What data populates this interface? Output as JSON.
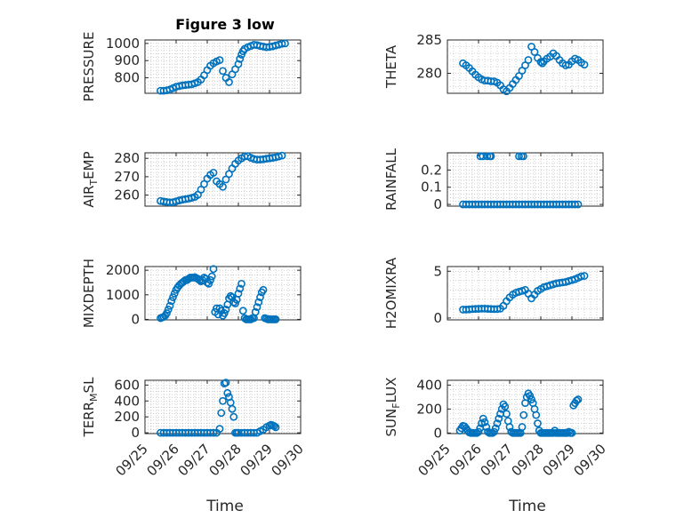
{
  "figure": {
    "title": "Figure 3 low",
    "xlabel": "Time",
    "marker_color": "#0072BD"
  },
  "chart_data": [
    {
      "type": "scatter",
      "title": "Figure 3 low",
      "ylabel": "PRESSURE",
      "xlim": [
        0,
        5
      ],
      "ylim": [
        710,
        1020
      ],
      "yticks": [
        800,
        900,
        1000
      ],
      "xticks": [
        0,
        1,
        2,
        3,
        4,
        5
      ],
      "xticklabels": [],
      "grid": true,
      "series": [
        {
          "x": [
            0.5,
            0.6,
            0.7,
            0.8,
            0.9,
            1.0,
            1.1,
            1.2,
            1.3,
            1.4,
            1.5,
            1.6,
            1.7,
            1.8,
            1.9,
            2.0,
            2.1,
            2.2,
            2.3,
            2.4,
            2.5,
            2.6,
            2.7,
            2.8,
            2.9,
            3.0,
            3.05,
            3.1,
            3.15,
            3.2,
            3.3,
            3.4,
            3.5,
            3.6,
            3.7,
            3.8,
            3.9,
            4.0,
            4.1,
            4.2,
            4.3,
            4.4,
            4.5
          ],
          "y": [
            725,
            725,
            727,
            732,
            740,
            748,
            752,
            756,
            758,
            760,
            762,
            768,
            775,
            790,
            815,
            845,
            870,
            885,
            895,
            903,
            840,
            800,
            775,
            820,
            850,
            880,
            910,
            935,
            955,
            968,
            978,
            985,
            992,
            990,
            985,
            982,
            978,
            980,
            983,
            988,
            993,
            998,
            1000
          ]
        }
      ]
    },
    {
      "type": "scatter",
      "ylabel": "THETA",
      "xlim": [
        0,
        5
      ],
      "ylim": [
        277,
        285
      ],
      "yticks": [
        280,
        285
      ],
      "xticks": [
        0,
        1,
        2,
        3,
        4,
        5
      ],
      "xticklabels": [],
      "grid": true,
      "series": [
        {
          "x": [
            0.5,
            0.6,
            0.7,
            0.8,
            0.9,
            1.0,
            1.1,
            1.2,
            1.3,
            1.4,
            1.5,
            1.6,
            1.7,
            1.8,
            1.9,
            2.0,
            2.1,
            2.2,
            2.3,
            2.4,
            2.5,
            2.6,
            2.7,
            2.8,
            2.9,
            3.0,
            3.05,
            3.1,
            3.2,
            3.3,
            3.4,
            3.5,
            3.6,
            3.7,
            3.8,
            3.9,
            4.0,
            4.1,
            4.2,
            4.3,
            4.4
          ],
          "y": [
            281.5,
            281.2,
            280.8,
            280.3,
            279.8,
            279.4,
            279.1,
            278.9,
            278.9,
            278.8,
            278.8,
            278.6,
            278.2,
            277.6,
            277.3,
            277.8,
            278.4,
            279.0,
            279.6,
            280.4,
            281.2,
            282.0,
            284.0,
            283.2,
            282.3,
            281.7,
            281.5,
            281.8,
            282.2,
            282.5,
            283.0,
            282.6,
            282.0,
            281.5,
            281.2,
            281.3,
            281.8,
            282.2,
            282.0,
            281.6,
            281.3
          ]
        }
      ]
    },
    {
      "type": "scatter",
      "ylabel": "AIR_TEMP",
      "xlim": [
        0,
        5
      ],
      "ylim": [
        254,
        283
      ],
      "yticks": [
        260,
        270,
        280
      ],
      "xticks": [
        0,
        1,
        2,
        3,
        4,
        5
      ],
      "xticklabels": [],
      "grid": true,
      "series": [
        {
          "x": [
            0.5,
            0.6,
            0.7,
            0.8,
            0.9,
            1.0,
            1.1,
            1.2,
            1.3,
            1.4,
            1.5,
            1.6,
            1.7,
            1.8,
            1.9,
            2.0,
            2.1,
            2.2,
            2.3,
            2.4,
            2.5,
            2.6,
            2.7,
            2.8,
            2.9,
            3.0,
            3.1,
            3.2,
            3.3,
            3.4,
            3.5,
            3.6,
            3.7,
            3.8,
            3.9,
            4.0,
            4.1,
            4.2,
            4.3,
            4.4
          ],
          "y": [
            256.8,
            256.5,
            256.2,
            256.0,
            256.1,
            256.6,
            257.1,
            257.5,
            257.8,
            258.1,
            258.5,
            259.0,
            260.2,
            263.0,
            266.0,
            269.0,
            271.0,
            272.2,
            267.5,
            266.0,
            264.5,
            268.5,
            271.5,
            274.5,
            277.0,
            278.8,
            280.0,
            281.0,
            281.2,
            280.3,
            279.6,
            279.3,
            279.3,
            279.5,
            279.8,
            280.0,
            280.3,
            280.6,
            281.0,
            281.5
          ]
        }
      ]
    },
    {
      "type": "scatter",
      "ylabel": "RAINFALL",
      "xlim": [
        0,
        5
      ],
      "ylim": [
        -0.01,
        0.3
      ],
      "yticks": [
        0,
        0.1,
        0.2
      ],
      "xticks": [
        0,
        1,
        2,
        3,
        4,
        5
      ],
      "xticklabels": [],
      "grid": true,
      "series": [
        {
          "x": [
            0.5,
            0.6,
            0.7,
            0.8,
            0.9,
            1.0,
            1.1,
            1.2,
            1.3,
            1.4,
            1.5,
            1.6,
            1.7,
            1.8,
            1.9,
            2.0,
            2.1,
            2.2,
            2.3,
            2.4,
            2.5,
            2.6,
            2.7,
            2.8,
            2.9,
            3.0,
            3.1,
            3.2,
            3.3,
            3.4,
            3.5,
            3.6,
            3.7,
            3.8,
            3.9,
            4.0,
            4.1,
            4.2,
            1.06,
            1.14,
            1.28,
            1.36,
            1.4,
            2.3,
            2.38,
            2.44
          ],
          "y": [
            0,
            0,
            0,
            0,
            0,
            0,
            0,
            0,
            0,
            0,
            0,
            0,
            0,
            0,
            0,
            0,
            0,
            0,
            0,
            0,
            0,
            0,
            0,
            0,
            0,
            0,
            0,
            0,
            0,
            0,
            0,
            0,
            0,
            0,
            0,
            0,
            0,
            0,
            0.28,
            0.28,
            0.28,
            0.28,
            0.28,
            0.28,
            0.28,
            0.28
          ]
        }
      ]
    },
    {
      "type": "scatter",
      "ylabel": "MIXDEPTH",
      "xlim": [
        0,
        5
      ],
      "ylim": [
        -20,
        2150
      ],
      "yticks": [
        0,
        1000,
        2000
      ],
      "xticks": [
        0,
        1,
        2,
        3,
        4,
        5
      ],
      "xticklabels": [],
      "grid": true,
      "series": [
        {
          "x": [
            0.5,
            0.55,
            0.6,
            0.65,
            0.7,
            0.75,
            0.8,
            0.85,
            0.9,
            0.95,
            1.0,
            1.05,
            1.1,
            1.15,
            1.2,
            1.25,
            1.3,
            1.35,
            1.4,
            1.45,
            1.5,
            1.55,
            1.6,
            1.65,
            1.7,
            1.75,
            1.8,
            1.85,
            1.9,
            1.95,
            2.0,
            2.05,
            2.1,
            2.15,
            2.2,
            2.25,
            2.3,
            2.35,
            2.4,
            2.45,
            2.5,
            2.55,
            2.6,
            2.65,
            2.7,
            2.75,
            2.8,
            2.85,
            2.9,
            2.95,
            3.0,
            3.05,
            3.1,
            3.15,
            3.2,
            3.25,
            3.3,
            3.35,
            3.4,
            3.45,
            3.5,
            3.55,
            3.6,
            3.65,
            3.7,
            3.75,
            3.8,
            3.85,
            3.9,
            3.95,
            4.0,
            4.05,
            4.1,
            4.15,
            4.2
          ],
          "y": [
            50,
            80,
            100,
            150,
            250,
            400,
            550,
            750,
            900,
            1050,
            1200,
            1300,
            1380,
            1450,
            1500,
            1550,
            1600,
            1600,
            1650,
            1700,
            1700,
            1700,
            1720,
            1680,
            1650,
            1600,
            1550,
            1600,
            1700,
            1650,
            1500,
            1450,
            1600,
            1750,
            2050,
            300,
            450,
            200,
            450,
            350,
            150,
            250,
            400,
            600,
            850,
            950,
            900,
            700,
            650,
            800,
            1050,
            1250,
            1450,
            350,
            50,
            0,
            0,
            0,
            0,
            50,
            50,
            300,
            500,
            700,
            900,
            1100,
            1200,
            50,
            30,
            0,
            0,
            0,
            0,
            0,
            0
          ]
        }
      ]
    },
    {
      "type": "scatter",
      "ylabel": "H2OMIXRA",
      "xlim": [
        0,
        5
      ],
      "ylim": [
        -0.2,
        5.5
      ],
      "yticks": [
        0,
        5
      ],
      "xticks": [
        0,
        1,
        2,
        3,
        4,
        5
      ],
      "xticklabels": [],
      "grid": true,
      "series": [
        {
          "x": [
            0.5,
            0.6,
            0.7,
            0.8,
            0.9,
            1.0,
            1.1,
            1.2,
            1.3,
            1.4,
            1.5,
            1.6,
            1.7,
            1.8,
            1.9,
            2.0,
            2.1,
            2.2,
            2.3,
            2.4,
            2.5,
            2.6,
            2.7,
            2.8,
            2.9,
            3.0,
            3.1,
            3.2,
            3.3,
            3.4,
            3.5,
            3.6,
            3.7,
            3.8,
            3.9,
            4.0,
            4.1,
            4.2,
            4.3,
            4.4
          ],
          "y": [
            0.9,
            0.9,
            0.92,
            0.95,
            0.97,
            0.98,
            1.0,
            1.0,
            0.98,
            0.96,
            0.95,
            0.95,
            1.0,
            1.3,
            1.8,
            2.2,
            2.5,
            2.7,
            2.8,
            2.9,
            3.0,
            2.6,
            2.1,
            2.5,
            2.9,
            3.1,
            3.3,
            3.4,
            3.5,
            3.6,
            3.7,
            3.75,
            3.8,
            3.85,
            3.95,
            4.05,
            4.15,
            4.3,
            4.45,
            4.5
          ]
        }
      ]
    },
    {
      "type": "scatter",
      "ylabel": "TERR_MSL",
      "xlim": [
        0,
        5
      ],
      "ylim": [
        -10,
        660
      ],
      "yticks": [
        0,
        200,
        400,
        600
      ],
      "xticks": [
        0,
        1,
        2,
        3,
        4,
        5
      ],
      "xticklabels": [
        "09/25",
        "09/26",
        "09/27",
        "09/28",
        "09/29",
        "09/30"
      ],
      "grid": true,
      "series": [
        {
          "x": [
            0.5,
            0.6,
            0.7,
            0.8,
            0.9,
            1.0,
            1.1,
            1.2,
            1.3,
            1.4,
            1.5,
            1.6,
            1.7,
            1.8,
            1.9,
            2.0,
            2.1,
            2.2,
            2.3,
            2.4,
            2.45,
            2.5,
            2.55,
            2.6,
            2.65,
            2.7,
            2.75,
            2.8,
            2.85,
            2.9,
            2.95,
            3.0,
            3.1,
            3.2,
            3.3,
            3.4,
            3.5,
            3.6,
            3.7,
            3.8,
            3.9,
            4.0,
            4.05,
            4.1,
            4.15,
            4.2
          ],
          "y": [
            0,
            0,
            0,
            0,
            0,
            0,
            0,
            0,
            0,
            0,
            0,
            0,
            0,
            0,
            0,
            0,
            0,
            0,
            0,
            50,
            250,
            400,
            620,
            630,
            500,
            450,
            380,
            300,
            200,
            0,
            0,
            0,
            0,
            0,
            0,
            0,
            0,
            0,
            20,
            40,
            70,
            90,
            100,
            95,
            85,
            70
          ]
        }
      ]
    },
    {
      "type": "scatter",
      "ylabel": "SUN_FLUX",
      "xlim": [
        0,
        5
      ],
      "ylim": [
        -5,
        440
      ],
      "yticks": [
        0,
        200,
        400
      ],
      "xticks": [
        0,
        1,
        2,
        3,
        4,
        5
      ],
      "xticklabels": [
        "09/25",
        "09/26",
        "09/27",
        "09/28",
        "09/29",
        "09/30"
      ],
      "grid": true,
      "series": [
        {
          "x": [
            0.4,
            0.45,
            0.5,
            0.55,
            0.6,
            0.65,
            0.7,
            0.75,
            0.8,
            0.85,
            0.9,
            0.95,
            1.0,
            1.05,
            1.1,
            1.15,
            1.2,
            1.25,
            1.3,
            1.35,
            1.4,
            1.45,
            1.5,
            1.55,
            1.6,
            1.65,
            1.7,
            1.75,
            1.8,
            1.85,
            1.9,
            1.95,
            2.0,
            2.05,
            2.1,
            2.15,
            2.2,
            2.25,
            2.3,
            2.35,
            2.4,
            2.45,
            2.5,
            2.55,
            2.6,
            2.65,
            2.7,
            2.75,
            2.8,
            2.85,
            2.9,
            2.95,
            3.0,
            3.05,
            3.1,
            3.15,
            3.2,
            3.25,
            3.3,
            3.35,
            3.4,
            3.45,
            3.5,
            3.55,
            3.6,
            3.65,
            3.7,
            3.75,
            3.8,
            3.85,
            3.9,
            3.95,
            4.0,
            4.05,
            4.1,
            4.15,
            4.2
          ],
          "y": [
            20,
            40,
            60,
            55,
            40,
            20,
            5,
            0,
            0,
            0,
            0,
            0,
            10,
            40,
            80,
            120,
            90,
            50,
            10,
            0,
            0,
            0,
            10,
            40,
            80,
            120,
            160,
            200,
            240,
            220,
            160,
            100,
            50,
            10,
            0,
            0,
            0,
            0,
            0,
            0,
            50,
            150,
            250,
            300,
            330,
            310,
            280,
            250,
            200,
            150,
            80,
            20,
            0,
            0,
            0,
            0,
            0,
            0,
            0,
            0,
            0,
            20,
            0,
            0,
            0,
            0,
            0,
            0,
            0,
            0,
            10,
            0,
            0,
            230,
            250,
            270,
            280
          ]
        }
      ]
    }
  ]
}
